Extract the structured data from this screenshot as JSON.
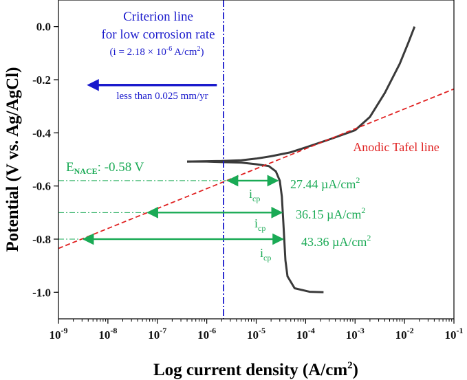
{
  "chart_data": {
    "type": "line",
    "x_scale": "log",
    "xlabel": "Log current density (A/cm",
    "xlabel_sup": "2",
    "xlabel_end": ")",
    "ylabel": "Potential (V vs. Ag/AgCl)",
    "xlim": [
      1e-09,
      0.1
    ],
    "ylim": [
      -1.1,
      0.1
    ],
    "x_ticks": [
      {
        "value": 1e-09,
        "base": "10",
        "exp": "-9"
      },
      {
        "value": 1e-08,
        "base": "10",
        "exp": "-8"
      },
      {
        "value": 1e-07,
        "base": "10",
        "exp": "-7"
      },
      {
        "value": 1e-06,
        "base": "10",
        "exp": "-6"
      },
      {
        "value": 1e-05,
        "base": "10",
        "exp": "-5"
      },
      {
        "value": 0.0001,
        "base": "10",
        "exp": "-4"
      },
      {
        "value": 0.001,
        "base": "10",
        "exp": "-3"
      },
      {
        "value": 0.01,
        "base": "10",
        "exp": "-2"
      },
      {
        "value": 0.1,
        "base": "10",
        "exp": "-1"
      }
    ],
    "y_ticks": [
      {
        "value": 0.0,
        "label": "0.0"
      },
      {
        "value": -0.2,
        "label": "-0.2"
      },
      {
        "value": -0.4,
        "label": "-0.4"
      },
      {
        "value": -0.6,
        "label": "-0.6"
      },
      {
        "value": -0.8,
        "label": "-0.8"
      },
      {
        "value": -1.0,
        "label": "-1.0"
      }
    ],
    "series": [
      {
        "color": "#3a3a3a",
        "style": "solid",
        "points": [
          [
            4e-07,
            -0.508
          ],
          [
            1e-06,
            -0.508
          ],
          [
            2e-06,
            -0.51
          ],
          [
            5e-06,
            -0.512
          ],
          [
            1e-05,
            -0.518
          ],
          [
            1.8e-05,
            -0.525
          ],
          [
            2.5e-05,
            -0.545
          ],
          [
            3e-05,
            -0.58
          ],
          [
            3.3e-05,
            -0.64
          ],
          [
            3.5e-05,
            -0.72
          ],
          [
            3.7e-05,
            -0.8
          ],
          [
            3.9e-05,
            -0.88
          ],
          [
            4.3e-05,
            -0.94
          ],
          [
            6e-05,
            -0.985
          ],
          [
            0.00012,
            -0.998
          ],
          [
            0.00023,
            -1.0
          ]
        ]
      },
      {
        "color": "#3a3a3a",
        "style": "solid",
        "points": [
          [
            4e-07,
            -0.508
          ],
          [
            2e-06,
            -0.506
          ],
          [
            5e-06,
            -0.503
          ],
          [
            1e-05,
            -0.497
          ],
          [
            2e-05,
            -0.488
          ],
          [
            5e-05,
            -0.473
          ],
          [
            0.0001,
            -0.455
          ],
          [
            0.0003,
            -0.425
          ],
          [
            0.001,
            -0.39
          ],
          [
            0.002,
            -0.34
          ],
          [
            0.004,
            -0.25
          ],
          [
            0.008,
            -0.14
          ],
          [
            0.012,
            -0.06
          ],
          [
            0.016,
            0.0
          ]
        ]
      },
      {
        "name": "Anodic Tafel line",
        "color": "#e02020",
        "style": "dashed",
        "points": [
          [
            1e-09,
            -0.835
          ],
          [
            0.1,
            -0.235
          ]
        ]
      }
    ],
    "criterion_line": {
      "x": 2.18e-06,
      "color": "#1a1acc",
      "title_line1": "Criterion line",
      "title_line2": "for low corrosion rate",
      "formula_pre": "(i = 2.18 × 10",
      "formula_exp": "-6",
      "formula_post": " A/cm",
      "formula_sup": "2",
      "formula_close": ")",
      "arrow_from_x": 1.6e-06,
      "arrow_to_x": 4.2e-09,
      "arrow_y": -0.22,
      "arrow_note": "less than 0.025 mm/yr"
    },
    "horizontal_markers": [
      {
        "y": -0.58,
        "x_start": 1e-09,
        "x_end": 2.5e-06,
        "color": "#1aaa55"
      },
      {
        "y": -0.7,
        "x_start": 1e-09,
        "x_end": 6e-08,
        "color": "#1aaa55"
      },
      {
        "y": -0.8,
        "x_start": 1e-09,
        "x_end": 3e-09,
        "color": "#1aaa55"
      }
    ],
    "icp_arrows": [
      {
        "y": -0.58,
        "x_start": 2.5e-06,
        "x_end": 2.9e-05,
        "value_label": "27.44 µA/cm",
        "sup": "2",
        "label": "i",
        "sub": "cp"
      },
      {
        "y": -0.7,
        "x_start": 6e-08,
        "x_end": 3.5e-05,
        "value_label": "36.15 µA/cm",
        "sup": "2",
        "label": "i",
        "sub": "cp"
      },
      {
        "y": -0.8,
        "x_start": 3e-09,
        "x_end": 3.7e-05,
        "value_label": "43.36 µA/cm",
        "sup": "2",
        "label": "i",
        "sub": "cp"
      }
    ],
    "enace_label": {
      "pre": "E",
      "sub": "NACE",
      "post": ": -0.58 V",
      "color": "#1aaa55"
    },
    "tafel_label": {
      "text": "Anodic Tafel line",
      "color": "#e02020"
    }
  }
}
